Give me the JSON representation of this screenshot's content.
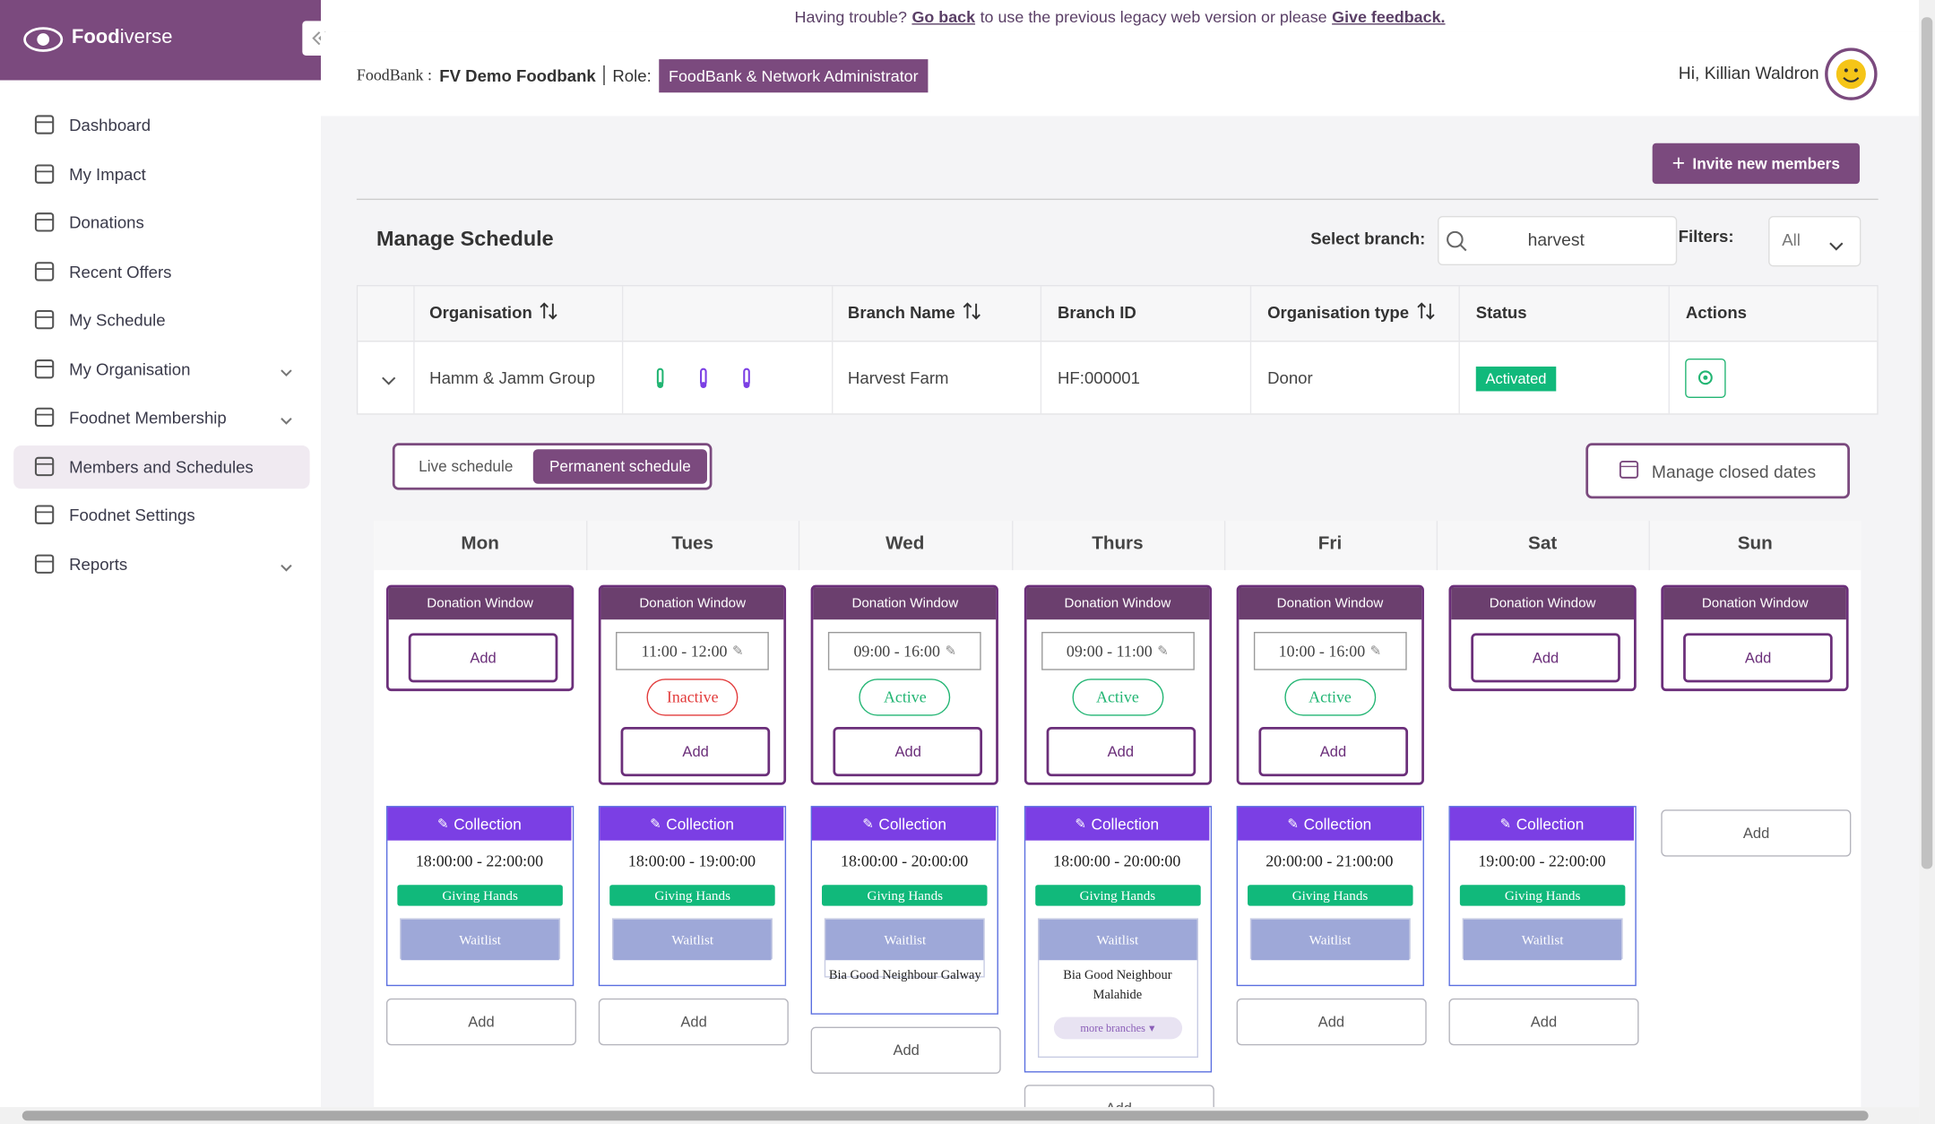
{
  "banner": {
    "before": "Having trouble?",
    "link1": "Go back",
    "middle": "to use the previous legacy web version or please",
    "link2": "Give feedback."
  },
  "sidebar": {
    "logo_bold": "Food",
    "logo_rest": "iverse",
    "items": [
      {
        "label": "Dashboard"
      },
      {
        "label": "My Impact"
      },
      {
        "label": "Donations"
      },
      {
        "label": "Recent Offers"
      },
      {
        "label": "My Schedule"
      },
      {
        "label": "My Organisation",
        "expandable": true
      },
      {
        "label": "Foodnet Membership",
        "expandable": true
      },
      {
        "label": "Members and Schedules",
        "active": true
      },
      {
        "label": "Foodnet Settings"
      },
      {
        "label": "Reports",
        "expandable": true
      }
    ]
  },
  "header": {
    "foodbank_label": "FoodBank :",
    "foodbank_name": "FV Demo Foodbank",
    "role_label": "Role:",
    "role": "FoodBank & Network Administrator",
    "greeting": "Hi, Killian Waldron"
  },
  "invite_button": "Invite new members",
  "manage": {
    "title": "Manage Schedule",
    "select_branch_label": "Select branch:",
    "search": "harvest",
    "filters_label": "Filters:",
    "filter_value": "All"
  },
  "table": {
    "columns": {
      "organisation": "Organisation",
      "branch_name": "Branch Name",
      "branch_id": "Branch ID",
      "org_type": "Organisation type",
      "status": "Status",
      "actions": "Actions"
    },
    "row": {
      "organisation": "Hamm & Jamm Group",
      "branch_name": "Harvest Farm",
      "branch_id": "HF:000001",
      "org_type": "Donor",
      "status": "Activated"
    }
  },
  "tabs": {
    "items": [
      "Live schedule",
      "Permanent schedule"
    ],
    "active": 1
  },
  "closed_dates_button": "Manage closed dates",
  "add_label": "Add",
  "days": [
    {
      "name": "Mon",
      "donation": {
        "title": "Donation Window"
      },
      "collection": {
        "title": "Collection",
        "time": "18:00:00 - 22:00:00",
        "member": "Giving Hands",
        "waitlist": "Waitlist"
      }
    },
    {
      "name": "Tues",
      "donation": {
        "title": "Donation Window",
        "time": "11:00 - 12:00",
        "status": "Inactive"
      },
      "collection": {
        "title": "Collection",
        "time": "18:00:00 - 19:00:00",
        "member": "Giving Hands",
        "waitlist": "Waitlist"
      }
    },
    {
      "name": "Wed",
      "donation": {
        "title": "Donation Window",
        "time": "09:00 - 16:00",
        "status": "Active"
      },
      "collection": {
        "title": "Collection",
        "time": "18:00:00 - 20:00:00",
        "member": "Giving Hands",
        "waitlist": "Waitlist",
        "waitlist_entry": "Bia Good Neighbour Galway"
      }
    },
    {
      "name": "Thurs",
      "donation": {
        "title": "Donation Window",
        "time": "09:00 - 11:00",
        "status": "Active"
      },
      "collection": {
        "title": "Collection",
        "time": "18:00:00 - 20:00:00",
        "member": "Giving Hands",
        "waitlist": "Waitlist",
        "waitlist_entry": "Bia Good Neighbour Malahide",
        "more": "more branches"
      }
    },
    {
      "name": "Fri",
      "donation": {
        "title": "Donation Window",
        "time": "10:00 - 16:00",
        "status": "Active"
      },
      "collection": {
        "title": "Collection",
        "time": "20:00:00 - 21:00:00",
        "member": "Giving Hands",
        "waitlist": "Waitlist"
      }
    },
    {
      "name": "Sat",
      "donation": {
        "title": "Donation Window"
      },
      "collection": {
        "title": "Collection",
        "time": "19:00:00 - 22:00:00",
        "member": "Giving Hands",
        "waitlist": "Waitlist"
      }
    },
    {
      "name": "Sun",
      "donation": {
        "title": "Donation Window"
      }
    }
  ]
}
